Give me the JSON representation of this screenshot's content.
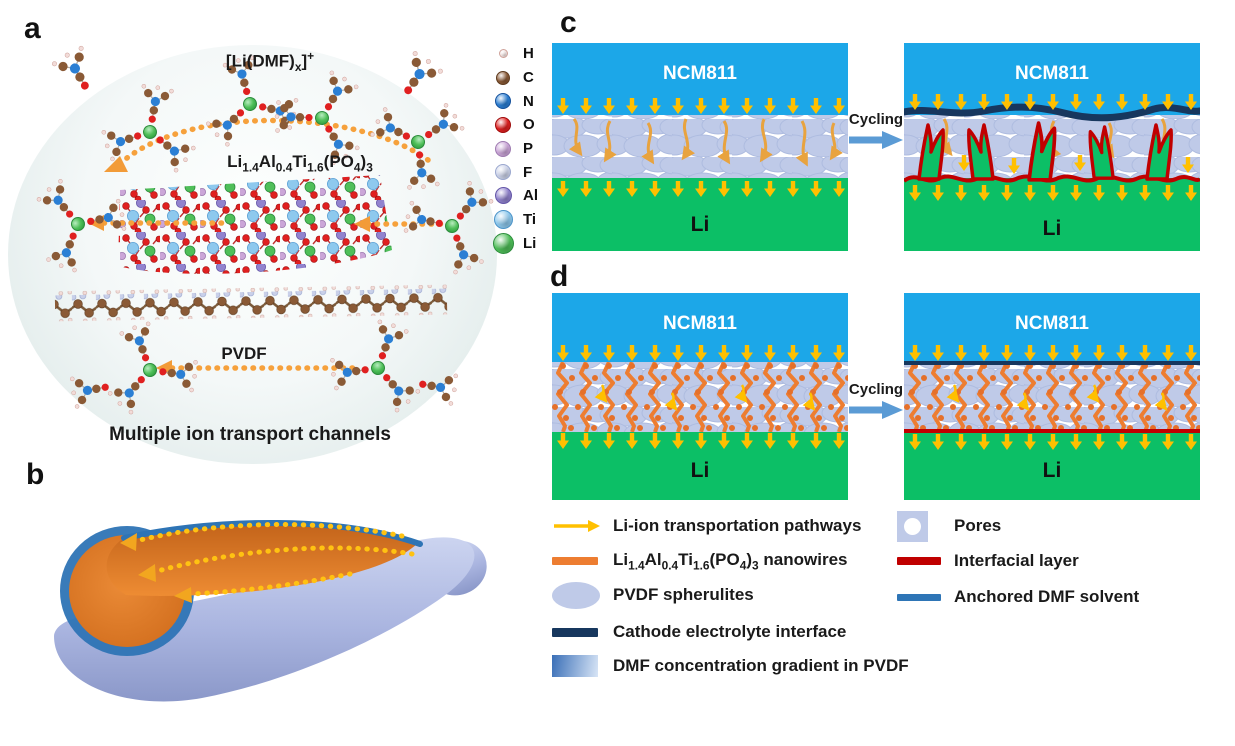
{
  "figure": {
    "panel_a_label": "a",
    "panel_b_label": "b",
    "panel_c_label": "c",
    "panel_d_label": "d"
  },
  "panel_a": {
    "solvated_ion_html": "[Li(DMF)<sub>x</sub>]<sup>+</sup>",
    "latp_formula_html": "Li<sub>1.4</sub>Al<sub>0.4</sub>Ti<sub>1.6</sub>(PO<sub>4</sub>)<sub>3</sub>",
    "pvdf_label": "PVDF",
    "caption": "Multiple ion transport channels"
  },
  "panel_c": {
    "cycling_label": "Cycling",
    "before": {
      "cathode_label": "NCM811",
      "anode_label": "Li"
    },
    "after": {
      "cathode_label": "NCM811",
      "anode_label": "Li"
    }
  },
  "panel_d": {
    "cycling_label": "Cycling",
    "before": {
      "cathode_label": "NCM811",
      "anode_label": "Li"
    },
    "after": {
      "cathode_label": "NCM811",
      "anode_label": "Li"
    }
  },
  "atom_legend": {
    "items": [
      {
        "symbol": "H",
        "color": "#F6E8E6",
        "edge": "#CFA29A"
      },
      {
        "symbol": "C",
        "color": "#8A5A36",
        "edge": "#5E3B1F"
      },
      {
        "symbol": "N",
        "color": "#2B7FD4",
        "edge": "#14509B"
      },
      {
        "symbol": "O",
        "color": "#E02020",
        "edge": "#9E0B0B"
      },
      {
        "symbol": "P",
        "color": "#CBA6D8",
        "edge": "#9E7BB0"
      },
      {
        "symbol": "F",
        "color": "#CDD4EA",
        "edge": "#9AA7CE"
      },
      {
        "symbol": "Al",
        "color": "#9183CE",
        "edge": "#6557A8"
      },
      {
        "symbol": "Ti",
        "color": "#8EC9EE",
        "edge": "#4C94C9"
      },
      {
        "symbol": "Li",
        "color": "#4FBF59",
        "edge": "#2C8C3C"
      }
    ]
  },
  "legend": {
    "left": [
      {
        "key": "pathways",
        "label_html": "Li-ion transportation pathways"
      },
      {
        "key": "nanowires",
        "label_html": "Li<sub>1.4</sub>Al<sub>0.4</sub>Ti<sub>1.6</sub>(PO<sub>4</sub>)<sub>3</sub> nanowires"
      },
      {
        "key": "spherulites",
        "label_html": "PVDF spherulites"
      },
      {
        "key": "cei",
        "label_html": "Cathode electrolyte interface"
      },
      {
        "key": "dmf_gradient",
        "label_html": "DMF concentration gradient in PVDF"
      }
    ],
    "right": [
      {
        "key": "pores",
        "label_html": "Pores"
      },
      {
        "key": "interfacial",
        "label_html": "Interfacial layer"
      },
      {
        "key": "anchored_dmf",
        "label_html": "Anchored DMF solvent"
      }
    ]
  },
  "colors": {
    "ncm_cyan": "#1CA7E8",
    "li_green": "#0CBF66",
    "spherulite": "#BFCAE8",
    "pathway_yellow": "#FFC000",
    "nanowire_orange": "#ED7D31",
    "interfacial_red": "#C00000",
    "cei_navy": "#17375E",
    "anchored_blue": "#2E75B6",
    "cycling_blue": "#5B9BD5",
    "dmf_gradient_dark": "#3A6FB7",
    "dmf_gradient_light": "#D8E5F6"
  }
}
